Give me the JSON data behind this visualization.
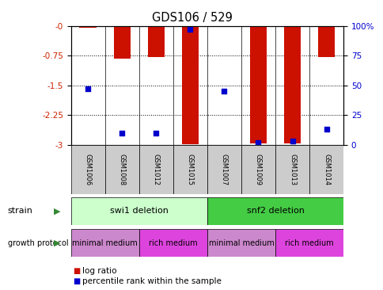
{
  "title": "GDS106 / 529",
  "samples": [
    "GSM1006",
    "GSM1008",
    "GSM1012",
    "GSM1015",
    "GSM1007",
    "GSM1009",
    "GSM1013",
    "GSM1014"
  ],
  "log_ratios": [
    -0.05,
    -0.82,
    -0.78,
    -2.98,
    -0.02,
    -2.97,
    -2.97,
    -0.78
  ],
  "percentile_ranks": [
    47,
    10,
    10,
    97,
    45,
    2,
    3,
    13
  ],
  "ylim_left": [
    -3,
    0
  ],
  "ylim_right": [
    0,
    100
  ],
  "yticks_left": [
    -3,
    -2.25,
    -1.5,
    -0.75,
    0
  ],
  "yticks_right": [
    0,
    25,
    50,
    75,
    100
  ],
  "ytick_left_labels": [
    "-3",
    "-2.25",
    "-1.5",
    "-0.75",
    "-0"
  ],
  "ytick_right_labels": [
    "0",
    "25",
    "50",
    "75",
    "100%"
  ],
  "strain_groups": [
    {
      "label": "swi1 deletion",
      "start": 0,
      "end": 4,
      "color": "#ccffcc"
    },
    {
      "label": "snf2 deletion",
      "start": 4,
      "end": 8,
      "color": "#44cc44"
    }
  ],
  "growth_protocol_groups": [
    {
      "label": "minimal medium",
      "start": 0,
      "end": 2,
      "color": "#cc88cc"
    },
    {
      "label": "rich medium",
      "start": 2,
      "end": 4,
      "color": "#dd44dd"
    },
    {
      "label": "minimal medium",
      "start": 4,
      "end": 6,
      "color": "#cc88cc"
    },
    {
      "label": "rich medium",
      "start": 6,
      "end": 8,
      "color": "#dd44dd"
    }
  ],
  "bar_color": "#cc1100",
  "dot_color": "#0000cc",
  "grid_color": "black",
  "sample_box_color": "#cccccc",
  "left_label_color": "#cc2200",
  "right_label_color": "#0000cc",
  "bar_width": 0.5,
  "dot_size": 18,
  "gridline_values": [
    -0.75,
    -1.5,
    -2.25
  ]
}
